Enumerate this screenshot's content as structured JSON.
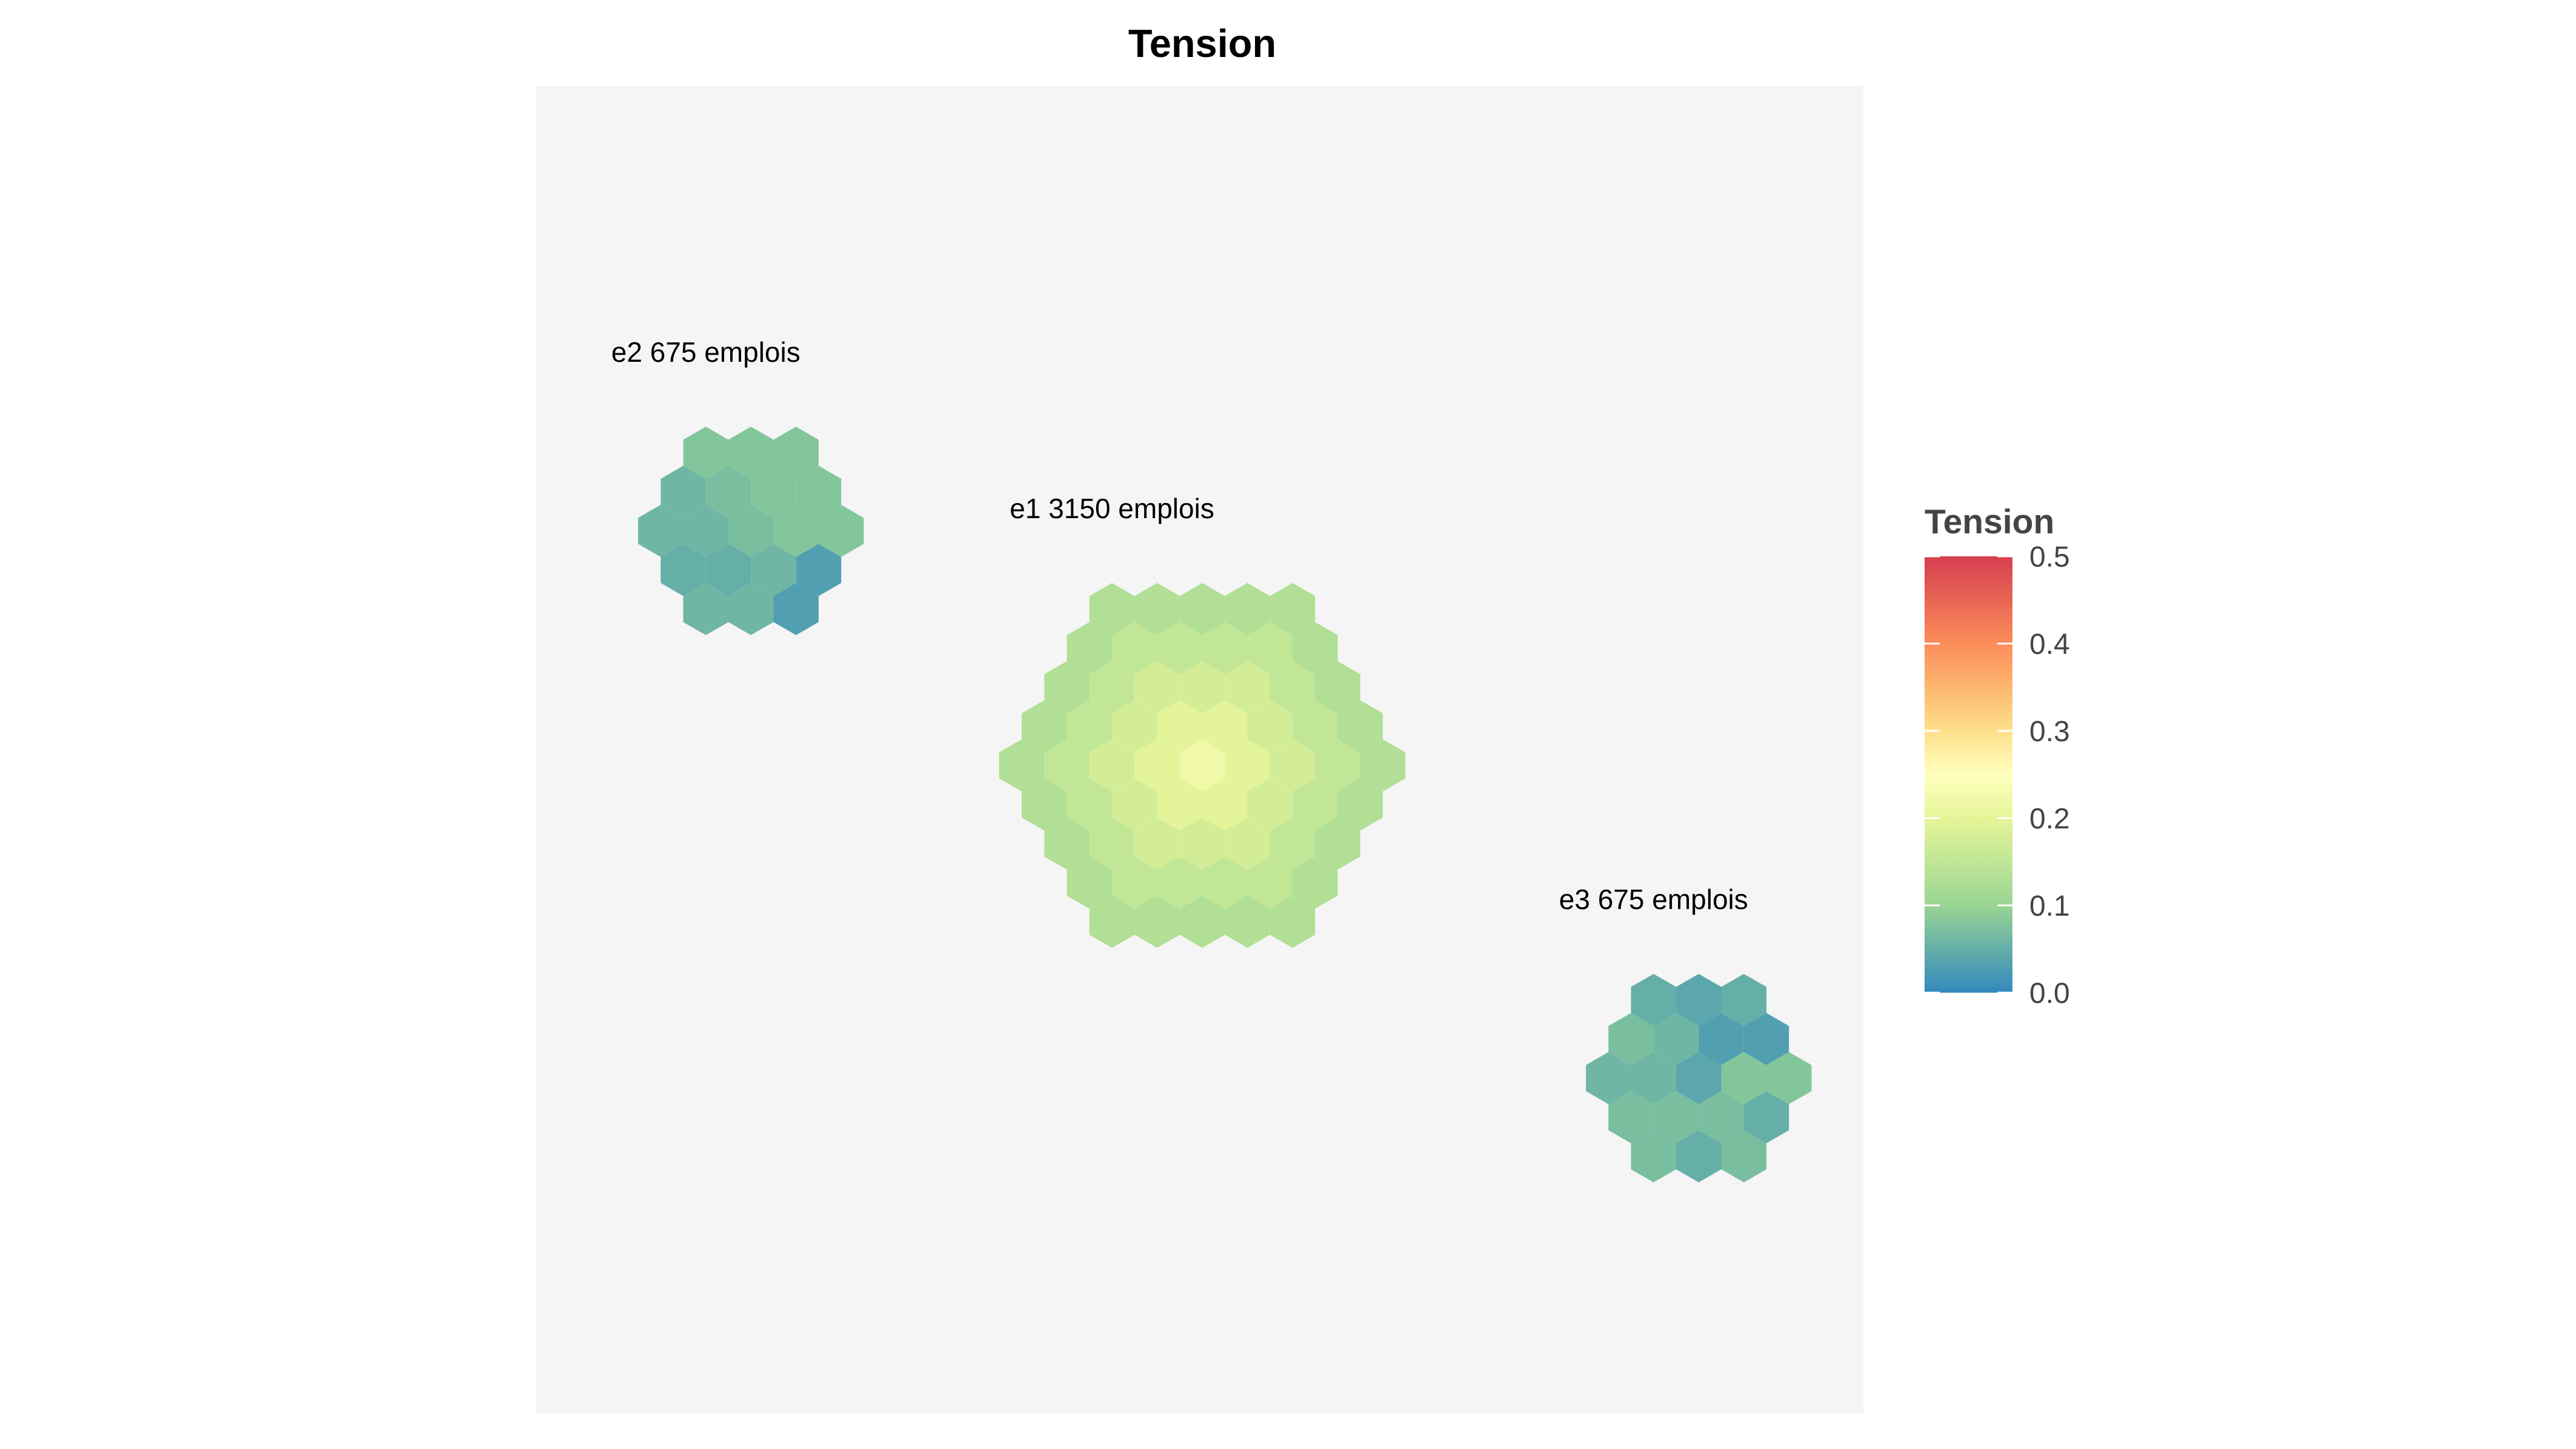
{
  "chart_data": {
    "type": "heatmap",
    "subtype": "hexbin-clusters",
    "title": "Tension",
    "background": "#f5f5f5",
    "axes_visible": false,
    "grid": false,
    "clusters": [
      {
        "id": "e1",
        "label": "e1 3150 emplois",
        "center": [
          0,
          0
        ],
        "radius": 4,
        "center_value": 0.22,
        "edge_value": 0.13,
        "values": []
      },
      {
        "id": "e2",
        "label": "e2 675 emplois",
        "center": [
          -7,
          -6
        ],
        "radius": 2,
        "center_value": 0.08,
        "edge_value": 0.04,
        "values": [
          [
            0.07,
            0.08,
            0.08
          ],
          [
            0.06,
            0.07,
            0.08,
            0.08
          ],
          [
            0.03,
            0.06,
            0.07,
            0.08
          ],
          [
            0.03,
            0.04,
            0.05,
            0.06
          ]
        ]
      },
      {
        "id": "e3",
        "label": "e3 675 emplois",
        "center": [
          7,
          8
        ],
        "radius": 2,
        "center_value": 0.06,
        "edge_value": 0.05,
        "values": [
          [
            0.05,
            0.04,
            0.04
          ],
          [
            0.08,
            0.07,
            0.06,
            0.03
          ],
          [
            0.08,
            0.07,
            0.06,
            0.04
          ],
          [
            0.07,
            0.07,
            0.05
          ]
        ]
      }
    ],
    "legend": {
      "title": "Tension",
      "placement": "right",
      "scale": "spectral",
      "range": [
        0.0,
        0.5
      ],
      "ticks": [
        "0.5",
        "0.4",
        "0.3",
        "0.2",
        "0.1",
        "0.0"
      ],
      "tick_values": [
        0.5,
        0.4,
        0.3,
        0.2,
        0.1,
        0.0
      ]
    },
    "color_stops": [
      {
        "value": 0.0,
        "color": "#3288bd"
      },
      {
        "value": 0.1,
        "color": "#99d594"
      },
      {
        "value": 0.2,
        "color": "#e6f598"
      },
      {
        "value": 0.25,
        "color": "#ffffbf"
      },
      {
        "value": 0.3,
        "color": "#fee08b"
      },
      {
        "value": 0.4,
        "color": "#fc8d59"
      },
      {
        "value": 0.5,
        "color": "#d53e4f"
      }
    ]
  }
}
